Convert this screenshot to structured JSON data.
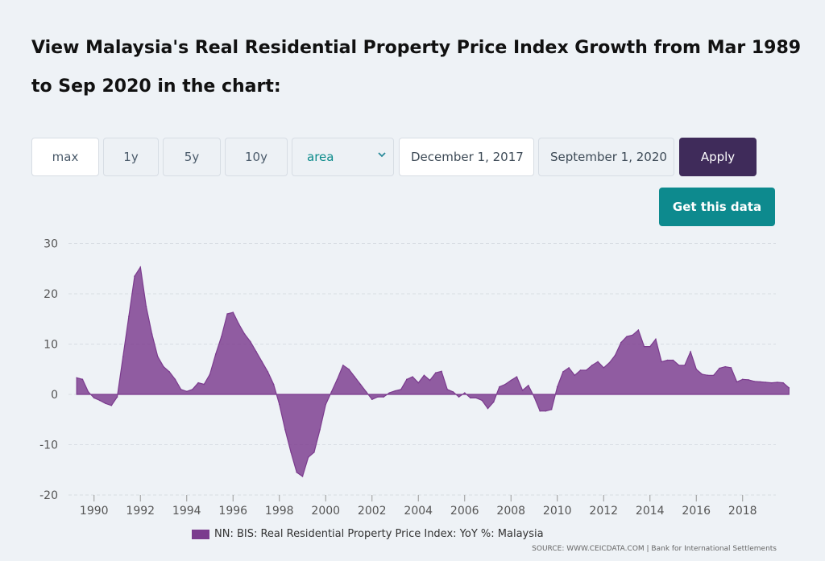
{
  "page": {
    "title": "View Malaysia's Real Residential Property Price Index Growth from Mar 1989 to Sep 2020 in the chart:"
  },
  "controls": {
    "range_buttons": [
      "max",
      "1y",
      "5y",
      "10y"
    ],
    "chart_type": "area",
    "start_date": "December 1, 2017",
    "end_date": "September 1, 2020",
    "apply_label": "Apply",
    "get_data_label": "Get this data"
  },
  "colors": {
    "area_fill": "#7b3b8e",
    "apply_bg": "#3f2b5a",
    "get_data_bg": "#0d8a8e"
  },
  "chart_data": {
    "type": "area",
    "title": "",
    "xlabel": "",
    "ylabel": "",
    "ylim": [
      -20,
      30
    ],
    "yticks": [
      30,
      20,
      10,
      0,
      -10,
      -20
    ],
    "xticks": [
      "1990",
      "1992",
      "1994",
      "1996",
      "1998",
      "2000",
      "2002",
      "2004",
      "2006",
      "2008",
      "2010",
      "2012",
      "2014",
      "2016",
      "2018"
    ],
    "grid": true,
    "legend_position": "bottom",
    "series": [
      {
        "name": "NN: BIS: Real Residential Property Price Index: YoY %: Malaysia",
        "color": "#7b3b8e",
        "points": [
          [
            "1989.25",
            3.3
          ],
          [
            "1989.5",
            3.0
          ],
          [
            "1989.75",
            0.5
          ],
          [
            "1990.0",
            -0.7
          ],
          [
            "1990.25",
            -1.2
          ],
          [
            "1990.5",
            -1.8
          ],
          [
            "1990.75",
            -2.2
          ],
          [
            "1991.0",
            -0.5
          ],
          [
            "1991.25",
            7.5
          ],
          [
            "1991.5",
            15.5
          ],
          [
            "1991.75",
            23.5
          ],
          [
            "1992.0",
            25.3
          ],
          [
            "1992.25",
            17.5
          ],
          [
            "1992.5",
            12.0
          ],
          [
            "1992.75",
            7.5
          ],
          [
            "1993.0",
            5.5
          ],
          [
            "1993.25",
            4.5
          ],
          [
            "1993.5",
            3.0
          ],
          [
            "1993.75",
            1.0
          ],
          [
            "1994.0",
            0.6
          ],
          [
            "1994.25",
            1.0
          ],
          [
            "1994.5",
            2.3
          ],
          [
            "1994.75",
            2.0
          ],
          [
            "1995.0",
            4.0
          ],
          [
            "1995.25",
            8.0
          ],
          [
            "1995.5",
            11.5
          ],
          [
            "1995.75",
            16.0
          ],
          [
            "1996.0",
            16.3
          ],
          [
            "1996.25",
            14.0
          ],
          [
            "1996.5",
            12.0
          ],
          [
            "1996.75",
            10.5
          ],
          [
            "1997.0",
            8.5
          ],
          [
            "1997.25",
            6.5
          ],
          [
            "1997.5",
            4.5
          ],
          [
            "1997.75",
            2.0
          ],
          [
            "1998.0",
            -2.0
          ],
          [
            "1998.25",
            -7.0
          ],
          [
            "1998.5",
            -11.5
          ],
          [
            "1998.75",
            -15.5
          ],
          [
            "1999.0",
            -16.3
          ],
          [
            "1999.25",
            -12.5
          ],
          [
            "1999.5",
            -11.5
          ],
          [
            "1999.75",
            -7.0
          ],
          [
            "2000.0",
            -2.0
          ],
          [
            "2000.25",
            0.5
          ],
          [
            "2000.5",
            3.0
          ],
          [
            "2000.75",
            5.8
          ],
          [
            "2001.0",
            5.0
          ],
          [
            "2001.25",
            3.5
          ],
          [
            "2001.5",
            2.0
          ],
          [
            "2001.75",
            0.5
          ],
          [
            "2002.0",
            -1.0
          ],
          [
            "2002.25",
            -0.5
          ],
          [
            "2002.5",
            -0.5
          ],
          [
            "2002.75",
            0.3
          ],
          [
            "2003.0",
            0.7
          ],
          [
            "2003.25",
            1.0
          ],
          [
            "2003.5",
            3.0
          ],
          [
            "2003.75",
            3.5
          ],
          [
            "2004.0",
            2.3
          ],
          [
            "2004.25",
            3.8
          ],
          [
            "2004.5",
            2.8
          ],
          [
            "2004.75",
            4.3
          ],
          [
            "2005.0",
            4.6
          ],
          [
            "2005.25",
            1.0
          ],
          [
            "2005.5",
            0.5
          ],
          [
            "2005.75",
            -0.5
          ],
          [
            "2006.0",
            0.3
          ],
          [
            "2006.25",
            -0.7
          ],
          [
            "2006.5",
            -0.7
          ],
          [
            "2006.75",
            -1.2
          ],
          [
            "2007.0",
            -2.8
          ],
          [
            "2007.25",
            -1.5
          ],
          [
            "2007.5",
            1.5
          ],
          [
            "2007.75",
            2.0
          ],
          [
            "2008.0",
            2.8
          ],
          [
            "2008.25",
            3.5
          ],
          [
            "2008.5",
            0.8
          ],
          [
            "2008.75",
            1.8
          ],
          [
            "2009.0",
            -0.5
          ],
          [
            "2009.25",
            -3.3
          ],
          [
            "2009.5",
            -3.3
          ],
          [
            "2009.75",
            -3.0
          ],
          [
            "2010.0",
            1.5
          ],
          [
            "2010.25",
            4.5
          ],
          [
            "2010.5",
            5.3
          ],
          [
            "2010.75",
            3.8
          ],
          [
            "2011.0",
            4.8
          ],
          [
            "2011.25",
            4.8
          ],
          [
            "2011.5",
            5.8
          ],
          [
            "2011.75",
            6.5
          ],
          [
            "2012.0",
            5.3
          ],
          [
            "2012.25",
            6.3
          ],
          [
            "2012.5",
            7.8
          ],
          [
            "2012.75",
            10.3
          ],
          [
            "2013.0",
            11.5
          ],
          [
            "2013.25",
            11.8
          ],
          [
            "2013.5",
            12.8
          ],
          [
            "2013.75",
            9.5
          ],
          [
            "2014.0",
            9.5
          ],
          [
            "2014.25",
            11.0
          ],
          [
            "2014.5",
            6.5
          ],
          [
            "2014.75",
            6.8
          ],
          [
            "2015.0",
            6.8
          ],
          [
            "2015.25",
            5.8
          ],
          [
            "2015.5",
            5.8
          ],
          [
            "2015.75",
            8.5
          ],
          [
            "2016.0",
            5.0
          ],
          [
            "2016.25",
            4.0
          ],
          [
            "2016.5",
            3.8
          ],
          [
            "2016.75",
            3.8
          ],
          [
            "2017.0",
            5.2
          ],
          [
            "2017.25",
            5.5
          ],
          [
            "2017.5",
            5.3
          ],
          [
            "2017.75",
            2.5
          ],
          [
            "2018.0",
            3.0
          ],
          [
            "2018.25",
            2.9
          ],
          [
            "2018.5",
            2.6
          ],
          [
            "2018.75",
            2.5
          ],
          [
            "2019.0",
            2.4
          ],
          [
            "2019.25",
            2.3
          ],
          [
            "2019.5",
            2.4
          ],
          [
            "2019.75",
            2.3
          ],
          [
            "2020.0",
            1.3
          ]
        ]
      }
    ]
  },
  "footer": {
    "source": "SOURCE: WWW.CEICDATA.COM | Bank for International Settlements"
  }
}
